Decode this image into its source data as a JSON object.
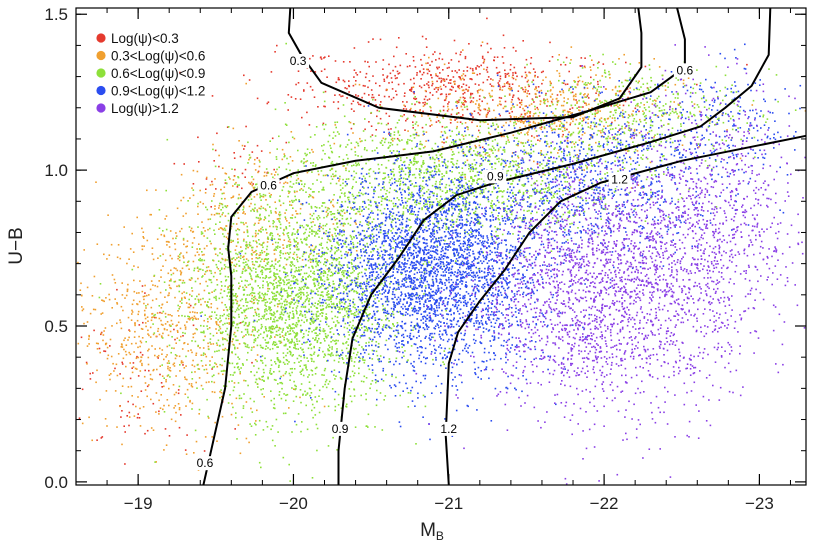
{
  "chart_data": {
    "type": "scatter",
    "xlabel": "M",
    "xlabel_sub": "B",
    "ylabel": "U−B",
    "xlim": [
      -18.6,
      -23.3
    ],
    "ylim": [
      -0.01,
      1.52
    ],
    "x_ticks": [
      {
        "value": -19,
        "label": "−19"
      },
      {
        "value": -20,
        "label": "−20"
      },
      {
        "value": -21,
        "label": "−21"
      },
      {
        "value": -22,
        "label": "−22"
      },
      {
        "value": -23,
        "label": "−23"
      }
    ],
    "y_ticks": [
      {
        "value": 0.0,
        "label": "0.0"
      },
      {
        "value": 0.5,
        "label": "0.5"
      },
      {
        "value": 1.0,
        "label": "1.0"
      },
      {
        "value": 1.5,
        "label": "1.5"
      }
    ],
    "legend_position": "top-left",
    "series": [
      {
        "name": "Log(ψ)<0.3",
        "color": "#e53a2e",
        "clusters": [
          {
            "x": -21.0,
            "y": 1.26,
            "sx": 0.55,
            "sy": 0.07,
            "n": 650
          },
          {
            "x": -19.0,
            "y": 0.35,
            "sx": 0.25,
            "sy": 0.15,
            "n": 90
          },
          {
            "x": -19.7,
            "y": 1.0,
            "sx": 0.2,
            "sy": 0.06,
            "n": 40
          }
        ]
      },
      {
        "name": "0.3<Log(ψ)<0.6",
        "color": "#f0a030",
        "clusters": [
          {
            "x": -21.6,
            "y": 1.18,
            "sx": 0.45,
            "sy": 0.08,
            "n": 550
          },
          {
            "x": -19.2,
            "y": 0.5,
            "sx": 0.3,
            "sy": 0.17,
            "n": 700
          },
          {
            "x": -19.8,
            "y": 0.85,
            "sx": 0.3,
            "sy": 0.12,
            "n": 350
          }
        ]
      },
      {
        "name": "0.6<Log(ψ)<0.9",
        "color": "#8ee03a",
        "clusters": [
          {
            "x": -20.0,
            "y": 0.58,
            "sx": 0.35,
            "sy": 0.17,
            "n": 2600
          },
          {
            "x": -21.0,
            "y": 0.98,
            "sx": 0.55,
            "sy": 0.1,
            "n": 1500
          },
          {
            "x": -22.2,
            "y": 1.18,
            "sx": 0.35,
            "sy": 0.08,
            "n": 450
          }
        ]
      },
      {
        "name": "0.9<Log(ψ)<1.2",
        "color": "#2b4df0",
        "clusters": [
          {
            "x": -20.9,
            "y": 0.68,
            "sx": 0.35,
            "sy": 0.16,
            "n": 3200
          },
          {
            "x": -21.9,
            "y": 0.98,
            "sx": 0.4,
            "sy": 0.12,
            "n": 900
          },
          {
            "x": -22.8,
            "y": 1.15,
            "sx": 0.25,
            "sy": 0.1,
            "n": 200
          }
        ]
      },
      {
        "name": "Log(ψ)>1.2",
        "color": "#8a3fe6",
        "clusters": [
          {
            "x": -22.0,
            "y": 0.62,
            "sx": 0.4,
            "sy": 0.2,
            "n": 2200
          },
          {
            "x": -22.7,
            "y": 0.85,
            "sx": 0.3,
            "sy": 0.2,
            "n": 800
          }
        ]
      }
    ],
    "contours": [
      {
        "label": "0.6",
        "points": [
          [
            -19.42,
            -0.01
          ],
          [
            -19.47,
            0.1
          ],
          [
            -19.56,
            0.3
          ],
          [
            -19.6,
            0.5
          ],
          [
            -19.6,
            0.66
          ],
          [
            -19.58,
            0.75
          ],
          [
            -19.6,
            0.85
          ],
          [
            -19.73,
            0.93
          ],
          [
            -20.0,
            0.99
          ],
          [
            -20.4,
            1.03
          ],
          [
            -20.9,
            1.06
          ],
          [
            -21.4,
            1.12
          ],
          [
            -21.9,
            1.19
          ],
          [
            -22.3,
            1.25
          ],
          [
            -22.52,
            1.33
          ],
          [
            -22.52,
            1.42
          ],
          [
            -22.47,
            1.52
          ]
        ],
        "labels": [
          {
            "x": -19.43,
            "y": 0.06
          },
          {
            "x": -19.84,
            "y": 0.95
          },
          {
            "x": -22.52,
            "y": 1.32
          }
        ]
      },
      {
        "label": "0.9",
        "points": [
          [
            -20.29,
            -0.01
          ],
          [
            -20.29,
            0.1
          ],
          [
            -20.33,
            0.3
          ],
          [
            -20.38,
            0.46
          ],
          [
            -20.5,
            0.6
          ],
          [
            -20.68,
            0.72
          ],
          [
            -20.84,
            0.84
          ],
          [
            -21.05,
            0.92
          ],
          [
            -21.3,
            0.96
          ],
          [
            -21.8,
            1.02
          ],
          [
            -22.3,
            1.09
          ],
          [
            -22.62,
            1.14
          ],
          [
            -22.78,
            1.2
          ],
          [
            -22.95,
            1.27
          ],
          [
            -23.06,
            1.37
          ],
          [
            -23.07,
            1.52
          ]
        ],
        "labels": [
          {
            "x": -20.3,
            "y": 0.17
          },
          {
            "x": -21.3,
            "y": 0.98
          }
        ]
      },
      {
        "label": "1.2",
        "points": [
          [
            -21.0,
            -0.01
          ],
          [
            -20.98,
            0.15
          ],
          [
            -21.0,
            0.38
          ],
          [
            -21.06,
            0.48
          ],
          [
            -21.2,
            0.58
          ],
          [
            -21.36,
            0.68
          ],
          [
            -21.52,
            0.8
          ],
          [
            -21.72,
            0.9
          ],
          [
            -21.98,
            0.96
          ],
          [
            -22.5,
            1.03
          ],
          [
            -23.0,
            1.08
          ],
          [
            -23.3,
            1.11
          ]
        ],
        "labels": [
          {
            "x": -21.0,
            "y": 0.17
          },
          {
            "x": -22.1,
            "y": 0.97
          }
        ]
      },
      {
        "label": "0.3",
        "points": [
          [
            -19.98,
            1.52
          ],
          [
            -19.97,
            1.44
          ],
          [
            -20.05,
            1.37
          ],
          [
            -20.18,
            1.28
          ],
          [
            -20.55,
            1.2
          ],
          [
            -21.2,
            1.16
          ],
          [
            -21.8,
            1.17
          ],
          [
            -22.1,
            1.23
          ],
          [
            -22.24,
            1.33
          ],
          [
            -22.24,
            1.44
          ],
          [
            -22.22,
            1.52
          ]
        ],
        "labels": [
          {
            "x": -20.03,
            "y": 1.35
          }
        ]
      }
    ]
  }
}
